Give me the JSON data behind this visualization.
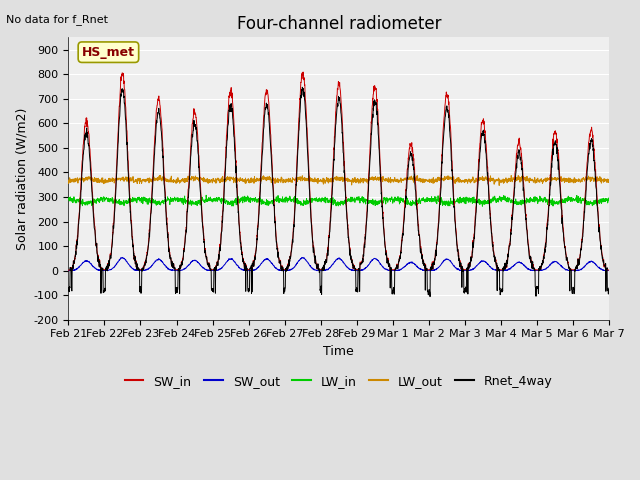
{
  "title": "Four-channel radiometer",
  "top_left_text": "No data for f_Rnet",
  "ylabel": "Solar radiation (W/m2)",
  "xlabel": "Time",
  "annotation": "HS_met",
  "ylim": [
    -200,
    950
  ],
  "yticks": [
    -200,
    -100,
    0,
    100,
    200,
    300,
    400,
    500,
    600,
    700,
    800,
    900
  ],
  "xtick_labels": [
    "Feb 21",
    "Feb 22",
    "Feb 23",
    "Feb 24",
    "Feb 25",
    "Feb 26",
    "Feb 27",
    "Feb 28",
    "Feb 29",
    "Mar 1",
    "Mar 2",
    "Mar 3",
    "Mar 4",
    "Mar 5",
    "Mar 6",
    "Mar 7"
  ],
  "legend_entries": [
    "SW_in",
    "SW_out",
    "LW_in",
    "LW_out",
    "Rnet_4way"
  ],
  "legend_colors": [
    "#cc0000",
    "#0000cc",
    "#00cc00",
    "#cc8800",
    "#000000"
  ],
  "line_colors": {
    "SW_in": "#cc0000",
    "SW_out": "#0000cc",
    "LW_in": "#00cc00",
    "LW_out": "#cc8800",
    "Rnet_4way": "#000000"
  },
  "background_color": "#e0e0e0",
  "plot_bg_color": "#efefef",
  "n_days": 15,
  "SW_in_peaks": [
    610,
    800,
    700,
    650,
    735,
    735,
    805,
    760,
    750,
    515,
    720,
    610,
    525,
    565,
    575
  ],
  "LW_in_base": 290,
  "LW_out_base": 365,
  "SW_out_max": 50,
  "Rnet_night": -80,
  "annotation_box_color": "#ffffcc",
  "annotation_border_color": "#999900",
  "title_fontsize": 12,
  "label_fontsize": 9,
  "tick_fontsize": 8,
  "legend_fontsize": 9
}
